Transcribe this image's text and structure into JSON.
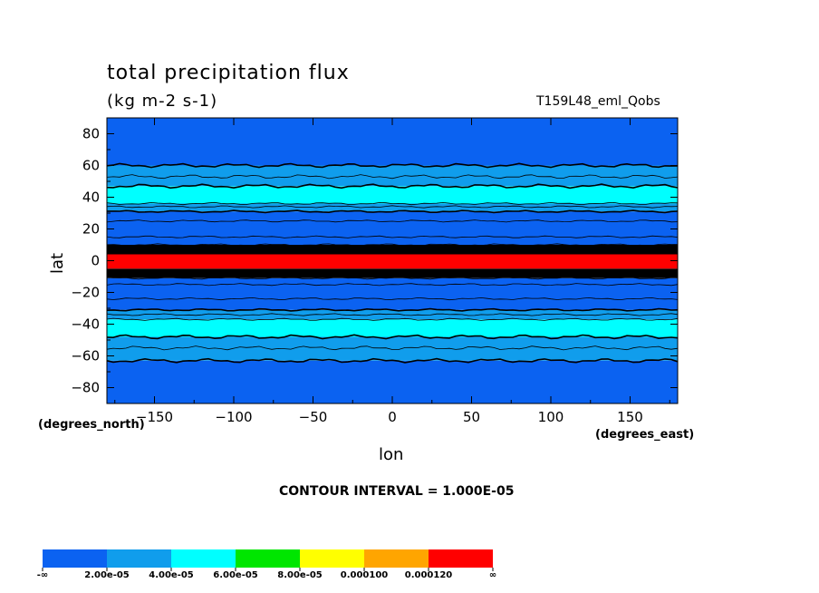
{
  "chart_data": {
    "type": "heatmap",
    "title": "total precipitation flux",
    "units": "(kg m-2 s-1)",
    "run_id": "T159L48_eml_Qobs",
    "xlabel": "lon",
    "ylabel": "lat",
    "x_units": "(degrees_east)",
    "y_units": "(degrees_north)",
    "xlim": [
      -180,
      180
    ],
    "ylim": [
      -90,
      90
    ],
    "xticks": [
      -150,
      -100,
      -50,
      0,
      50,
      100,
      150
    ],
    "yticks": [
      -80,
      -60,
      -40,
      -20,
      0,
      20,
      40,
      60,
      80
    ],
    "contour_interval": "CONTOUR INTERVAL = 1.000E-05",
    "colorbar": {
      "colors": [
        "#0b62f1",
        "#109dec",
        "#00ffff",
        "#00e600",
        "#ffff00",
        "#ffa500",
        "#ff0000"
      ],
      "labels": [
        "-∞",
        "2.00e-05",
        "4.00e-05",
        "6.00e-05",
        "8.00e-05",
        "0.000100",
        "0.000120",
        "∞"
      ]
    },
    "zonal_bands": [
      {
        "lat_min": -90,
        "lat_max": -63,
        "color": "#0b62f1",
        "range": "< 2.00e-05"
      },
      {
        "lat_min": -63,
        "lat_max": -48,
        "color": "#109dec",
        "range": "2.00e-05 – 4.00e-05"
      },
      {
        "lat_min": -48,
        "lat_max": -37,
        "color": "#00ffff",
        "range": "4.00e-05 – 6.00e-05"
      },
      {
        "lat_min": -37,
        "lat_max": -31,
        "color": "#109dec",
        "range": "2.00e-05 – 4.00e-05"
      },
      {
        "lat_min": -31,
        "lat_max": -11,
        "color": "#0b62f1",
        "range": "< 2.00e-05"
      },
      {
        "lat_min": -11,
        "lat_max": -5,
        "color": "#000000",
        "range": "4.00e-05 – 0.000120 (dense contours)"
      },
      {
        "lat_min": -5,
        "lat_max": 4,
        "color": "#ff0000",
        "range": "> 0.000120"
      },
      {
        "lat_min": 4,
        "lat_max": 10,
        "color": "#000000",
        "range": "4.00e-05 – 0.000120 (dense contours)"
      },
      {
        "lat_min": 10,
        "lat_max": 31,
        "color": "#0b62f1",
        "range": "< 2.00e-05"
      },
      {
        "lat_min": 31,
        "lat_max": 36,
        "color": "#109dec",
        "range": "2.00e-05 – 4.00e-05"
      },
      {
        "lat_min": 36,
        "lat_max": 47,
        "color": "#00ffff",
        "range": "4.00e-05 – 6.00e-05"
      },
      {
        "lat_min": 47,
        "lat_max": 60,
        "color": "#109dec",
        "range": "2.00e-05 – 4.00e-05"
      },
      {
        "lat_min": 60,
        "lat_max": 90,
        "color": "#0b62f1",
        "range": "< 2.00e-05"
      }
    ],
    "contour_lats": [
      -63,
      -55,
      -48,
      -37,
      -34,
      -31,
      -24,
      -15,
      -11,
      10,
      15,
      25,
      31,
      34,
      36,
      47,
      53,
      60
    ],
    "grid": false
  }
}
